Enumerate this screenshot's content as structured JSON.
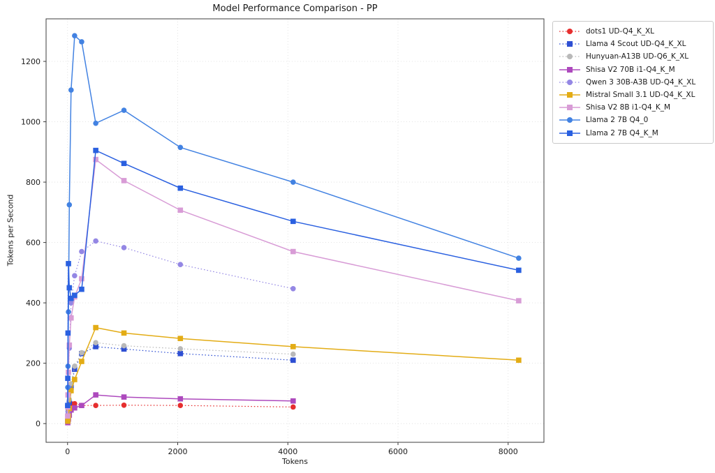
{
  "figure": {
    "title": "Model Performance Comparison - PP",
    "xlabel": "Tokens",
    "ylabel": "Tokens per Second"
  },
  "chart_data": {
    "type": "line",
    "title": "Model Performance Comparison - PP",
    "xlabel": "Tokens",
    "ylabel": "Tokens per Second",
    "xlim": [
      -390,
      8650
    ],
    "ylim": [
      -62,
      1341
    ],
    "xticks": [
      0,
      2000,
      4000,
      6000,
      8000
    ],
    "yticks": [
      0,
      200,
      400,
      600,
      800,
      1000,
      1200
    ],
    "grid": true,
    "grid_style": "dotted light gray",
    "legend_position": "outside upper right",
    "series": [
      {
        "name": "dots1 UD-Q4_K_XL",
        "color": "#e62e2e",
        "linestyle": "dotted",
        "marker": "circle",
        "x": [
          4,
          8,
          16,
          32,
          64,
          128,
          256,
          512,
          1024,
          2048,
          4096
        ],
        "y": [
          10,
          25,
          50,
          62,
          66,
          66,
          60,
          60,
          61,
          60,
          55
        ]
      },
      {
        "name": "Llama 4 Scout UD-Q4_K_XL",
        "color": "#2e4fd3",
        "linestyle": "dotted",
        "marker": "square",
        "x": [
          4,
          8,
          16,
          32,
          64,
          128,
          256,
          512,
          1024,
          2048,
          4096
        ],
        "y": [
          8,
          20,
          40,
          70,
          120,
          180,
          232,
          255,
          247,
          232,
          210
        ]
      },
      {
        "name": "Hunyuan-A13B UD-Q6_K_XL",
        "color": "#b9b9b9",
        "linestyle": "dotted",
        "marker": "circle",
        "x": [
          4,
          8,
          16,
          32,
          64,
          128,
          256,
          512,
          1024,
          2048,
          4096
        ],
        "y": [
          10,
          22,
          45,
          80,
          132,
          190,
          235,
          268,
          258,
          248,
          230
        ]
      },
      {
        "name": "Shisa V2 70B i1-Q4_K_M",
        "color": "#ad49bd",
        "linestyle": "solid",
        "marker": "square",
        "x": [
          4,
          8,
          16,
          32,
          64,
          128,
          256,
          512,
          1024,
          2048,
          4096
        ],
        "y": [
          3,
          8,
          15,
          28,
          45,
          52,
          60,
          95,
          88,
          82,
          75
        ]
      },
      {
        "name": "Qwen 3 30B-A3B UD-Q4_K_XL",
        "color": "#9487e4",
        "linestyle": "dotted",
        "marker": "circle",
        "x": [
          4,
          8,
          16,
          32,
          64,
          128,
          256,
          512,
          1024,
          2048,
          4096
        ],
        "y": [
          15,
          40,
          120,
          250,
          400,
          490,
          570,
          605,
          583,
          527,
          447
        ]
      },
      {
        "name": "Mistral Small 3.1 UD-Q4_K_XL",
        "color": "#e3ac15",
        "linestyle": "solid",
        "marker": "square",
        "x": [
          4,
          8,
          16,
          32,
          64,
          128,
          256,
          512,
          1024,
          2048,
          4096,
          8192
        ],
        "y": [
          8,
          15,
          25,
          50,
          109,
          146,
          206,
          318,
          300,
          282,
          255,
          210
        ]
      },
      {
        "name": "Shisa V2 8B i1-Q4_K_M",
        "color": "#d89cd6",
        "linestyle": "solid",
        "marker": "square",
        "x": [
          2,
          4,
          8,
          16,
          32,
          64,
          128,
          256,
          512,
          1024,
          2048,
          4096,
          8192
        ],
        "y": [
          25,
          55,
          95,
          170,
          260,
          350,
          420,
          480,
          875,
          805,
          707,
          570,
          407
        ]
      },
      {
        "name": "Llama 2 7B Q4_0",
        "color": "#4282e2",
        "linestyle": "solid",
        "marker": "circle",
        "x": [
          2,
          4,
          8,
          16,
          32,
          64,
          128,
          256,
          512,
          1024,
          2048,
          4096,
          8192
        ],
        "y": [
          60,
          120,
          190,
          370,
          725,
          1105,
          1285,
          1265,
          995,
          1038,
          915,
          800,
          548
        ]
      },
      {
        "name": "Llama 2 7B Q4_K_M",
        "color": "#2a60e0",
        "linestyle": "solid",
        "marker": "square",
        "x": [
          2,
          4,
          8,
          16,
          32,
          64,
          128,
          256,
          512,
          1024,
          2048,
          4096,
          8192
        ],
        "y": [
          60,
          150,
          300,
          530,
          450,
          415,
          425,
          445,
          905,
          862,
          780,
          670,
          508
        ]
      }
    ]
  }
}
